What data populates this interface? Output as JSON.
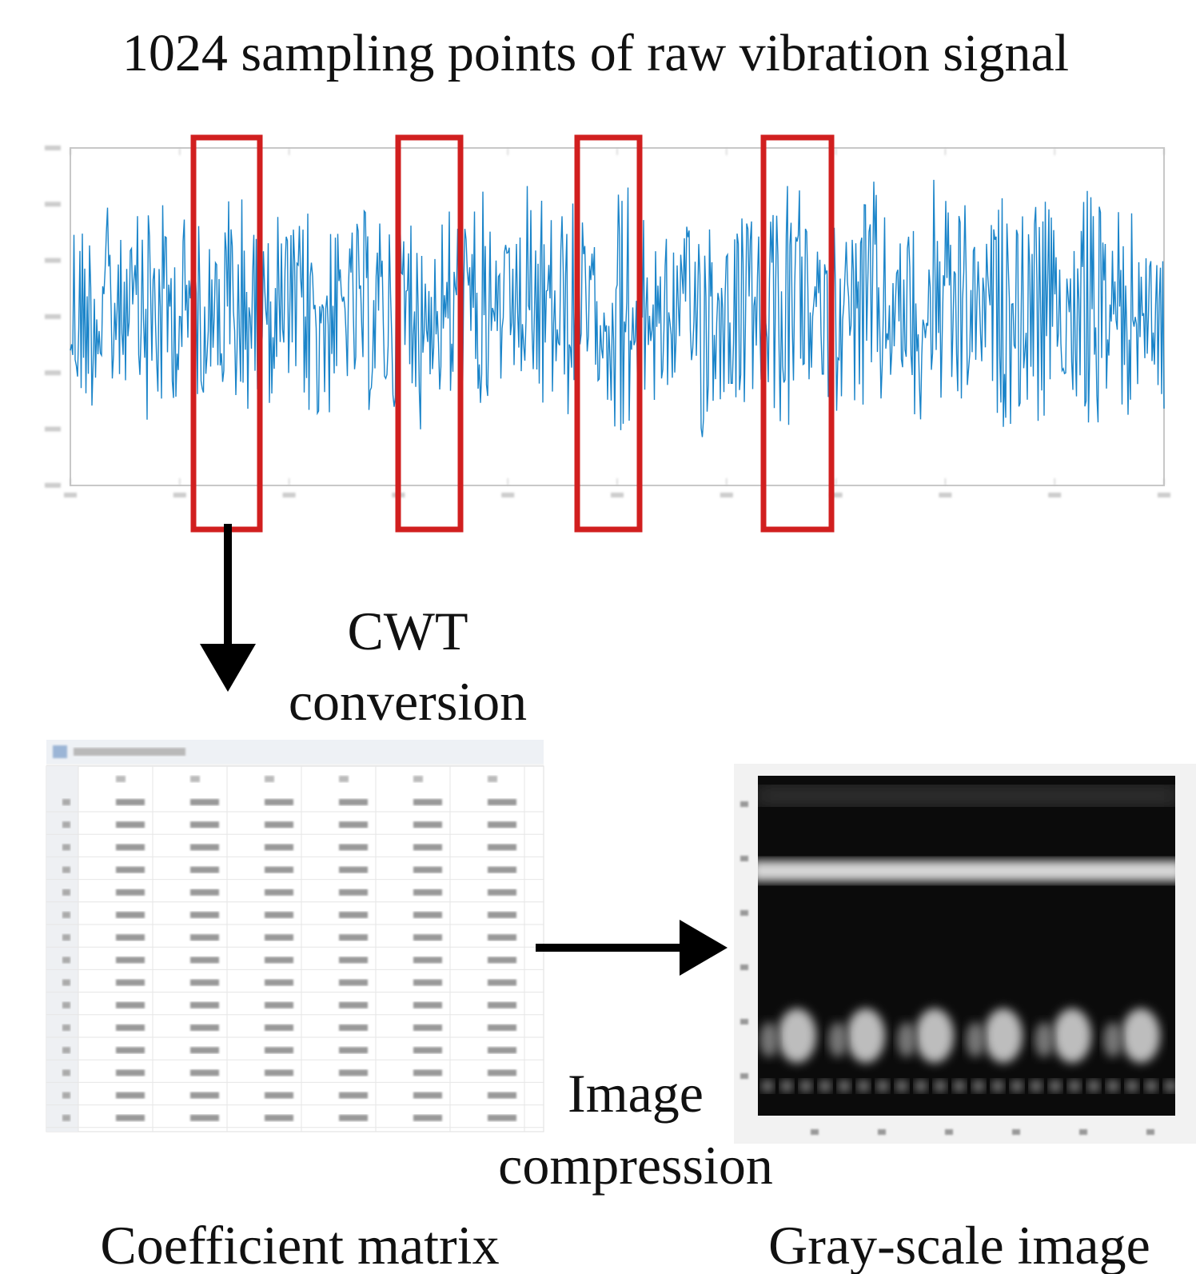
{
  "header": {
    "title": "1024 sampling points of raw vibration signal"
  },
  "steps": [
    {
      "label_lines": [
        "CWT",
        "conversion"
      ]
    },
    {
      "label_lines": [
        "Image",
        "compression"
      ]
    }
  ],
  "panels": [
    {
      "caption": "Coefficient matrix"
    },
    {
      "caption": "Gray-scale image"
    }
  ]
}
